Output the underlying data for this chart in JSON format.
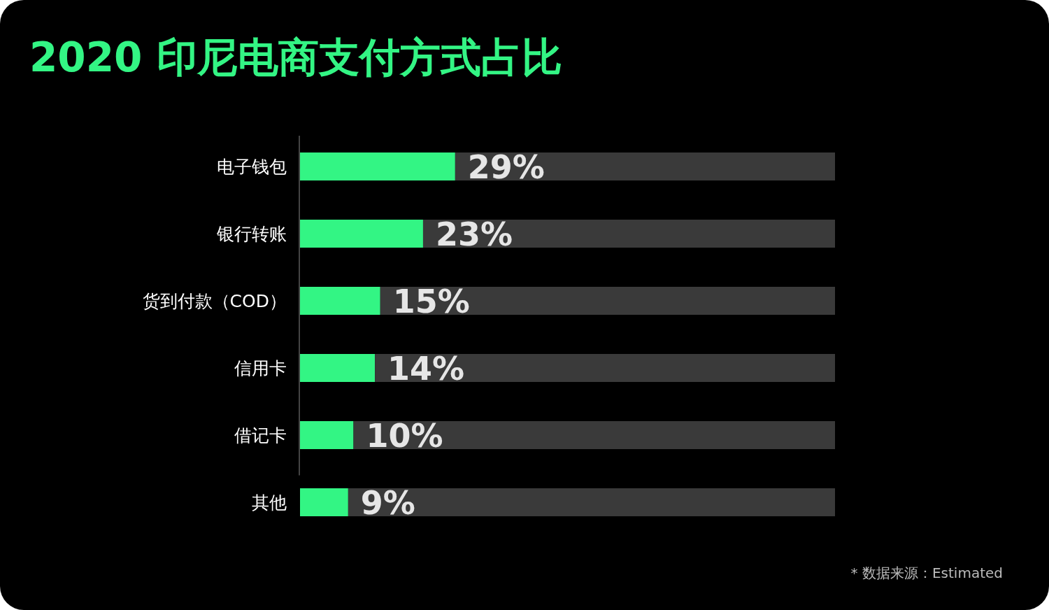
{
  "chart_data": {
    "type": "bar",
    "orientation": "horizontal",
    "stacked": true,
    "title": "2020 印尼电商支付方式占比",
    "categories": [
      "电子钱包",
      "银行转账",
      "货到付款（COD）",
      "信用卡",
      "借记卡",
      "其他"
    ],
    "xlim": [
      0,
      100
    ],
    "series": [
      {
        "color": "#33f584",
        "values": [
          29,
          23,
          15,
          14,
          10,
          9
        ],
        "value_labels": [
          "29%",
          "23%",
          "15%",
          "14%",
          "10%",
          "9%"
        ]
      },
      {
        "color": "#3a3a3a",
        "values": [
          71,
          77,
          85,
          86,
          90,
          91
        ]
      }
    ],
    "annotations": [
      "* 数据来源：Estimated"
    ]
  }
}
